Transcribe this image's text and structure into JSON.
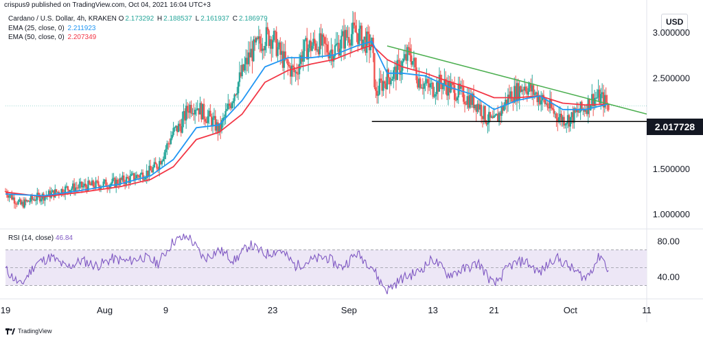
{
  "header": {
    "published": "crispus9 published on TradingView.com, Oct 04, 2021 16:04 UTC+3"
  },
  "legend": {
    "symbol": "Cardano / U.S. Dollar, 4h, KRAKEN",
    "ohlc": {
      "o_label": "O",
      "o": "2.173292",
      "h_label": "H",
      "h": "2.188537",
      "l_label": "L",
      "l": "2.161937",
      "c_label": "C",
      "c": "2.186979"
    },
    "ema25_label": "EMA (25, close, 0)",
    "ema25_value": "2.211923",
    "ema50_label": "EMA (50, close, 0)",
    "ema50_value": "2.207349",
    "rsi_label": "RSI (14, close)",
    "rsi_value": "46.84"
  },
  "currency": "USD",
  "price_flag": "2.017728",
  "footer": {
    "brand": "TradingView"
  },
  "colors": {
    "up": "#26a69a",
    "down": "#ef5350",
    "ema25": "#2196f3",
    "ema50": "#f23645",
    "trend": "#4caf50",
    "support": "#000000",
    "rsi": "#7e57c2",
    "rsi_band": "#ede7f6"
  },
  "chart_data": [
    {
      "type": "line",
      "title": "Cardano / U.S. Dollar, 4h, KRAKEN",
      "price_ticks": [
        "3.000000",
        "2.500000",
        "1.500000",
        "1.000000"
      ],
      "price_tick_values": [
        3.0,
        2.5,
        1.5,
        1.0
      ],
      "ylim": [
        0.85,
        3.25
      ],
      "x_ticks": [
        "19",
        "Aug",
        "9",
        "23",
        "Sep",
        "13",
        "21",
        "Oct",
        "11"
      ],
      "x_tick_days": [
        0,
        13,
        21,
        35,
        45,
        56,
        64,
        74,
        84
      ],
      "series": [
        {
          "name": "Price (close)",
          "x": [
            0,
            2,
            4,
            6,
            8,
            10,
            12,
            14,
            16,
            18,
            19,
            20,
            21,
            22,
            23,
            24,
            25,
            26,
            27,
            28,
            29,
            30,
            31,
            32,
            33,
            34,
            35,
            36,
            37,
            38,
            39,
            40,
            41,
            42,
            43,
            44,
            45,
            46,
            47,
            48,
            48.5,
            49,
            50,
            51,
            52,
            53,
            54,
            55,
            56,
            57,
            58,
            59,
            60,
            61,
            62,
            63,
            64,
            65,
            66,
            67,
            68,
            69,
            70,
            71,
            72,
            73,
            74,
            75,
            76,
            77,
            78,
            79
          ],
          "values": [
            1.25,
            1.1,
            1.18,
            1.22,
            1.28,
            1.3,
            1.32,
            1.34,
            1.38,
            1.44,
            1.47,
            1.55,
            1.72,
            1.9,
            1.98,
            2.18,
            2.2,
            2.1,
            2.03,
            1.92,
            2.12,
            2.35,
            2.55,
            2.75,
            2.85,
            2.95,
            2.95,
            2.75,
            2.62,
            2.55,
            2.8,
            2.85,
            2.88,
            2.82,
            2.8,
            2.9,
            2.98,
            3.0,
            2.9,
            2.85,
            2.3,
            2.4,
            2.5,
            2.55,
            2.65,
            2.78,
            2.5,
            2.42,
            2.38,
            2.45,
            2.4,
            2.35,
            2.3,
            2.25,
            2.2,
            2.05,
            2.0,
            2.15,
            2.3,
            2.35,
            2.42,
            2.35,
            2.28,
            2.2,
            2.1,
            2.05,
            2.05,
            2.12,
            2.18,
            2.28,
            2.28,
            2.19
          ]
        },
        {
          "name": "EMA (25, close, 0)",
          "x": [
            0,
            5,
            10,
            15,
            19,
            22,
            25,
            28,
            31,
            34,
            37,
            40,
            43,
            46,
            48,
            50,
            52,
            55,
            58,
            61,
            64,
            67,
            70,
            73,
            76,
            79
          ],
          "values": [
            1.22,
            1.2,
            1.26,
            1.33,
            1.42,
            1.6,
            1.95,
            1.98,
            2.25,
            2.62,
            2.72,
            2.72,
            2.75,
            2.85,
            2.9,
            2.55,
            2.55,
            2.52,
            2.4,
            2.32,
            2.15,
            2.25,
            2.3,
            2.15,
            2.15,
            2.21
          ]
        },
        {
          "name": "EMA (50, close, 0)",
          "x": [
            0,
            5,
            10,
            15,
            19,
            22,
            25,
            28,
            31,
            34,
            37,
            40,
            43,
            46,
            48,
            50,
            52,
            55,
            58,
            61,
            64,
            67,
            70,
            73,
            76,
            79
          ],
          "values": [
            1.24,
            1.19,
            1.24,
            1.3,
            1.38,
            1.52,
            1.82,
            1.9,
            2.1,
            2.45,
            2.58,
            2.65,
            2.7,
            2.8,
            2.86,
            2.7,
            2.62,
            2.55,
            2.46,
            2.38,
            2.28,
            2.28,
            2.3,
            2.22,
            2.2,
            2.21
          ]
        }
      ],
      "annotations": {
        "support_level": 2.017728,
        "support_x": [
          48,
          84
        ],
        "trendline": {
          "x": [
            50,
            84
          ],
          "values": [
            2.85,
            2.1
          ]
        }
      }
    },
    {
      "type": "line",
      "title": "RSI (14, close)",
      "y_ticks": [
        "80.00",
        "40.00"
      ],
      "y_tick_values": [
        80,
        40
      ],
      "ylim": [
        18,
        92
      ],
      "bands": [
        70,
        50,
        30
      ],
      "series": [
        {
          "name": "RSI",
          "x": [
            0,
            2,
            4,
            6,
            8,
            10,
            12,
            14,
            16,
            18,
            20,
            22,
            24,
            26,
            28,
            30,
            32,
            34,
            36,
            38,
            40,
            42,
            44,
            46,
            48,
            49,
            50,
            52,
            54,
            56,
            58,
            60,
            62,
            64,
            66,
            68,
            70,
            72,
            74,
            76,
            78,
            79
          ],
          "values": [
            48,
            30,
            55,
            62,
            50,
            58,
            52,
            60,
            57,
            62,
            55,
            80,
            85,
            60,
            70,
            58,
            76,
            65,
            70,
            52,
            58,
            62,
            50,
            66,
            52,
            35,
            25,
            38,
            45,
            60,
            42,
            48,
            55,
            30,
            52,
            58,
            44,
            62,
            50,
            38,
            65,
            46.84
          ]
        }
      ]
    }
  ]
}
